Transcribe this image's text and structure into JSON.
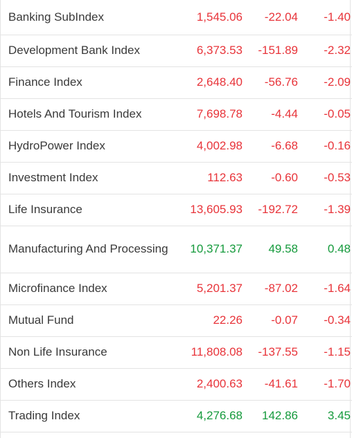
{
  "colors": {
    "negative": "#e8343a",
    "positive": "#159a3c"
  },
  "rows": [
    {
      "name": "Banking SubIndex",
      "close": "1,545.06",
      "change": "-22.04",
      "percent": "-1.40",
      "trend": "neg"
    },
    {
      "name": "Development Bank Index",
      "close": "6,373.53",
      "change": "-151.89",
      "percent": "-2.32",
      "trend": "neg"
    },
    {
      "name": "Finance Index",
      "close": "2,648.40",
      "change": "-56.76",
      "percent": "-2.09",
      "trend": "neg"
    },
    {
      "name": "Hotels And Tourism Index",
      "close": "7,698.78",
      "change": "-4.44",
      "percent": "-0.05",
      "trend": "neg"
    },
    {
      "name": "HydroPower Index",
      "close": "4,002.98",
      "change": "-6.68",
      "percent": "-0.16",
      "trend": "neg"
    },
    {
      "name": "Investment Index",
      "close": "112.63",
      "change": "-0.60",
      "percent": "-0.53",
      "trend": "neg"
    },
    {
      "name": "Life Insurance",
      "close": "13,605.93",
      "change": "-192.72",
      "percent": "-1.39",
      "trend": "neg"
    },
    {
      "name": "Manufacturing And Processing",
      "close": "10,371.37",
      "change": "49.58",
      "percent": "0.48",
      "trend": "pos"
    },
    {
      "name": "Microfinance Index",
      "close": "5,201.37",
      "change": "-87.02",
      "percent": "-1.64",
      "trend": "neg"
    },
    {
      "name": "Mutual Fund",
      "close": "22.26",
      "change": "-0.07",
      "percent": "-0.34",
      "trend": "neg"
    },
    {
      "name": "Non Life Insurance",
      "close": "11,808.08",
      "change": "-137.55",
      "percent": "-1.15",
      "trend": "neg"
    },
    {
      "name": "Others Index",
      "close": "2,400.63",
      "change": "-41.61",
      "percent": "-1.70",
      "trend": "neg"
    },
    {
      "name": "Trading Index",
      "close": "4,276.68",
      "change": "142.86",
      "percent": "3.45",
      "trend": "pos"
    }
  ]
}
